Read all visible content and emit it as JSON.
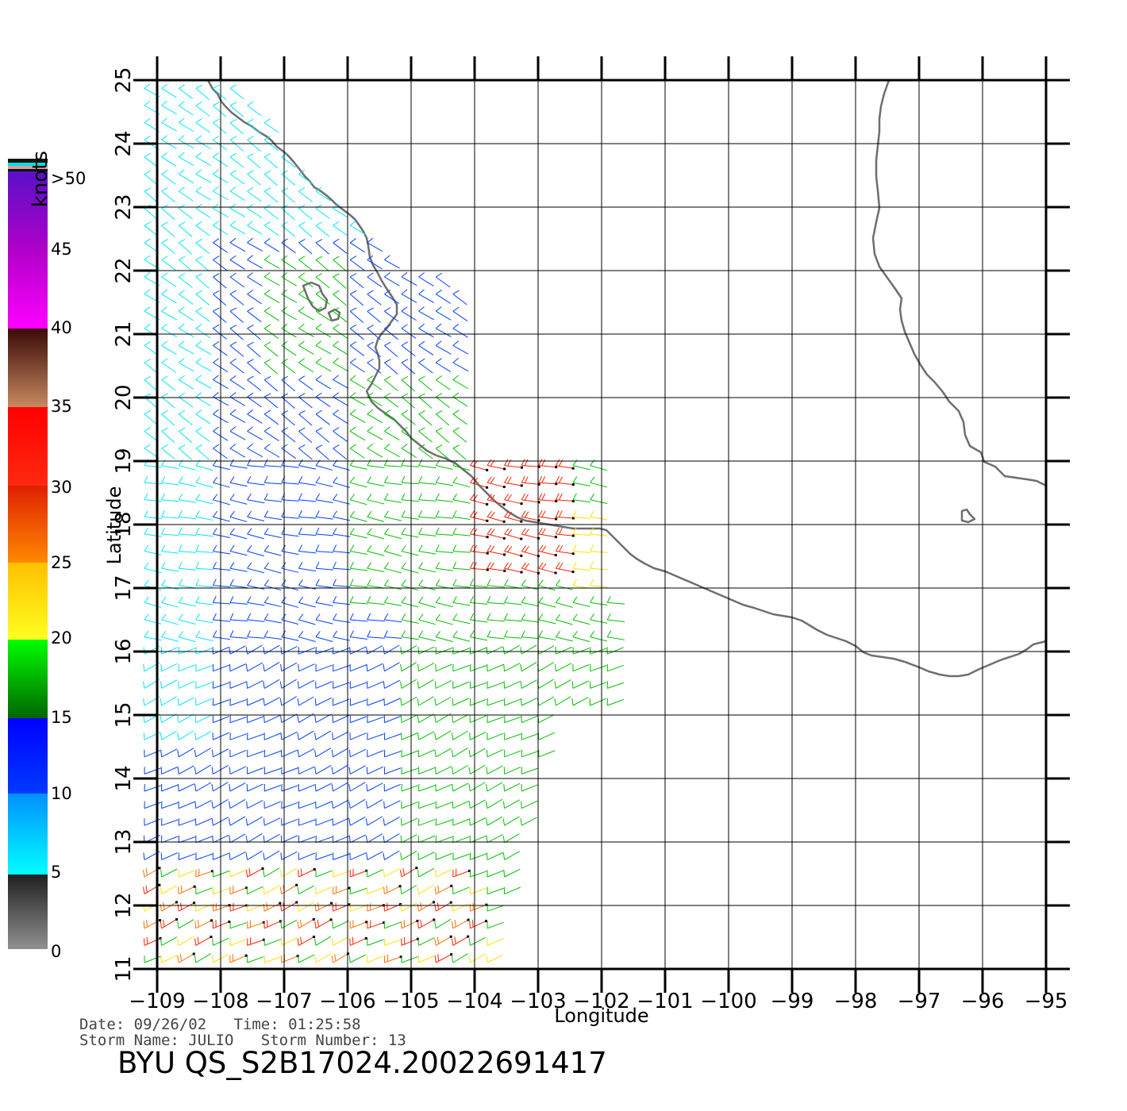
{
  "map": {
    "lon_ticks": [
      "-109",
      "-108",
      "-107",
      "-106",
      "-105",
      "-104",
      "-103",
      "-102",
      "-101",
      "-100",
      "-99",
      "-98",
      "-97",
      "-96",
      "-95"
    ],
    "lat_ticks": [
      "25",
      "24",
      "23",
      "22",
      "21",
      "20",
      "19",
      "18",
      "17",
      "16",
      "15",
      "14",
      "13",
      "12",
      "11"
    ],
    "xlabel": "Longitude",
    "ylabel": "Latitude",
    "lon_range": [
      -109,
      -95
    ],
    "lat_range": [
      11,
      25
    ],
    "grid": true
  },
  "legend": {
    "unit": "knots",
    "labels": [
      ">50",
      "45",
      "40",
      "35",
      "30",
      "25",
      "20",
      "15",
      "10",
      "5",
      "0"
    ],
    "colors": {
      "gray_0_5": "#6e6e6e",
      "cyan_5_10": "#00e5ff",
      "blue_10_15": "#0040ff",
      "green_15_20": "#00c000",
      "yellow_20_25": "#ffe000",
      "orange_25_30": "#ff7000",
      "red_30_35": "#ff2000",
      "brown_35_40": "#8a4a30",
      "magenta_40_45": "#ff00ff",
      "purple_45_50": "#8000c0"
    }
  },
  "info": {
    "date_line": "Date: 09/26/02   Time: 01:25:58",
    "storm_line": "Storm Name: JULIO   Storm Number: 13",
    "product_id": "BYU QS_S2B17024.20022691417"
  }
}
